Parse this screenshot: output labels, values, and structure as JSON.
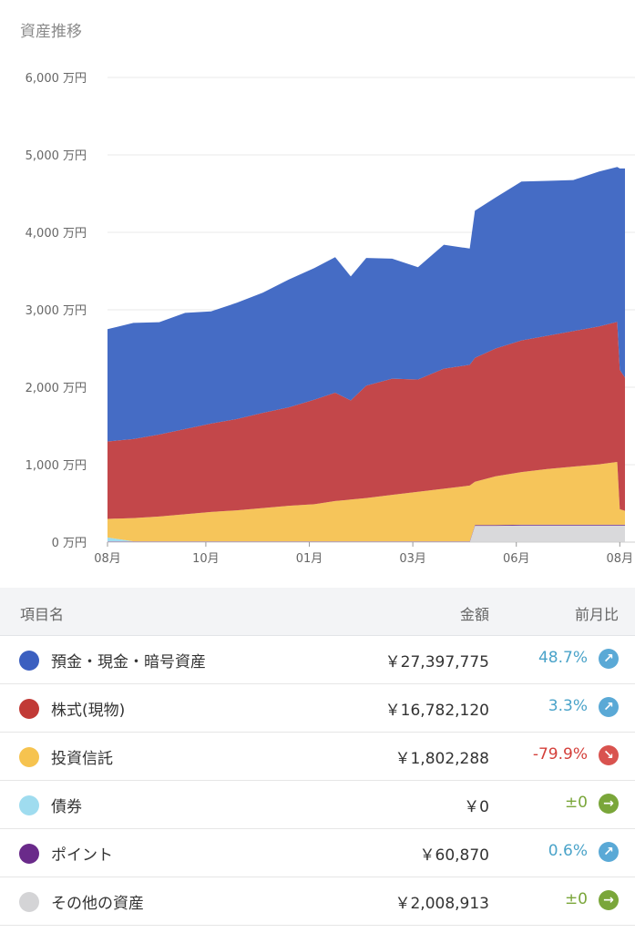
{
  "title": "資産推移",
  "chart_data": {
    "type": "area",
    "stacked": true,
    "ylim": [
      0,
      6000
    ],
    "yticks": [
      0,
      1000,
      2000,
      3000,
      4000,
      5000,
      6000
    ],
    "ytick_labels": [
      "0 万円",
      "1,000 万円",
      "2,000 万円",
      "3,000 万円",
      "4,000 万円",
      "5,000 万円",
      "6,000 万円"
    ],
    "x_ticks": [
      "08月",
      "10月",
      "01月",
      "03月",
      "06月",
      "08月"
    ],
    "x_tick_positions": [
      0.0,
      0.19,
      0.39,
      0.59,
      0.79,
      0.99
    ],
    "x": [
      0,
      0.05,
      0.1,
      0.15,
      0.2,
      0.25,
      0.3,
      0.35,
      0.4,
      0.44,
      0.47,
      0.5,
      0.55,
      0.6,
      0.65,
      0.7,
      0.71,
      0.75,
      0.8,
      0.85,
      0.9,
      0.95,
      0.985,
      0.99,
      1.0
    ],
    "series": [
      {
        "name": "その他の資産",
        "color": "#d9d9db",
        "values": [
          0,
          0,
          0,
          0,
          0,
          0,
          0,
          0,
          0,
          0,
          0,
          0,
          0,
          0,
          0,
          0,
          210,
          210,
          215,
          215,
          215,
          215,
          215,
          215,
          215
        ]
      },
      {
        "name": "ポイント",
        "color": "#6a2a8a",
        "values": [
          10,
          10,
          10,
          10,
          10,
          10,
          10,
          10,
          10,
          10,
          10,
          10,
          10,
          10,
          10,
          10,
          10,
          10,
          10,
          10,
          10,
          10,
          10,
          10,
          10
        ]
      },
      {
        "name": "債券",
        "color": "#9fdcef",
        "values": [
          50,
          0,
          0,
          0,
          0,
          0,
          0,
          0,
          0,
          0,
          0,
          0,
          0,
          0,
          0,
          0,
          0,
          0,
          0,
          0,
          0,
          0,
          0,
          0,
          0
        ]
      },
      {
        "name": "投資信託",
        "color": "#f6c55a",
        "values": [
          240,
          300,
          320,
          350,
          380,
          400,
          430,
          460,
          480,
          520,
          540,
          560,
          600,
          640,
          680,
          720,
          560,
          630,
          680,
          720,
          750,
          780,
          810,
          200,
          180
        ]
      },
      {
        "name": "株式(現物)",
        "color": "#c3474a",
        "values": [
          1000,
          1020,
          1060,
          1100,
          1140,
          1180,
          1230,
          1270,
          1350,
          1400,
          1280,
          1450,
          1500,
          1450,
          1550,
          1560,
          1600,
          1650,
          1700,
          1720,
          1750,
          1780,
          1810,
          1800,
          1720
        ]
      },
      {
        "name": "預金・現金・暗号資産",
        "color": "#456cc5",
        "values": [
          1450,
          1500,
          1450,
          1500,
          1450,
          1500,
          1550,
          1650,
          1700,
          1750,
          1600,
          1650,
          1550,
          1450,
          1600,
          1500,
          1900,
          1950,
          2050,
          2000,
          1950,
          2000,
          2000,
          2600,
          2700
        ]
      }
    ]
  },
  "table": {
    "headers": {
      "name": "項目名",
      "amount": "金額",
      "change": "前月比"
    },
    "rows": [
      {
        "name": "預金・現金・暗号資産",
        "color": "#3b5fc0",
        "amount": "￥27,397,775",
        "change": "48.7%",
        "change_color": "#4aa3c9",
        "arrow": "↗",
        "arrow_color": "#5aa9d6"
      },
      {
        "name": "株式(現物)",
        "color": "#c13a36",
        "amount": "￥16,782,120",
        "change": "3.3%",
        "change_color": "#4aa3c9",
        "arrow": "↗",
        "arrow_color": "#5aa9d6"
      },
      {
        "name": "投資信託",
        "color": "#f6c34f",
        "amount": "￥1,802,288",
        "change": "-79.9%",
        "change_color": "#d43f3a",
        "arrow": "↘",
        "arrow_color": "#d9534f"
      },
      {
        "name": "債券",
        "color": "#9fdcef",
        "amount": "￥0",
        "change": "±0",
        "change_color": "#7aa63a",
        "arrow": "→",
        "arrow_color": "#7aa63a"
      },
      {
        "name": "ポイント",
        "color": "#6a2a8a",
        "amount": "￥60,870",
        "change": "0.6%",
        "change_color": "#4aa3c9",
        "arrow": "↗",
        "arrow_color": "#5aa9d6"
      },
      {
        "name": "その他の資産",
        "color": "#d4d4d6",
        "amount": "￥2,008,913",
        "change": "±0",
        "change_color": "#7aa63a",
        "arrow": "→",
        "arrow_color": "#7aa63a"
      }
    ]
  }
}
